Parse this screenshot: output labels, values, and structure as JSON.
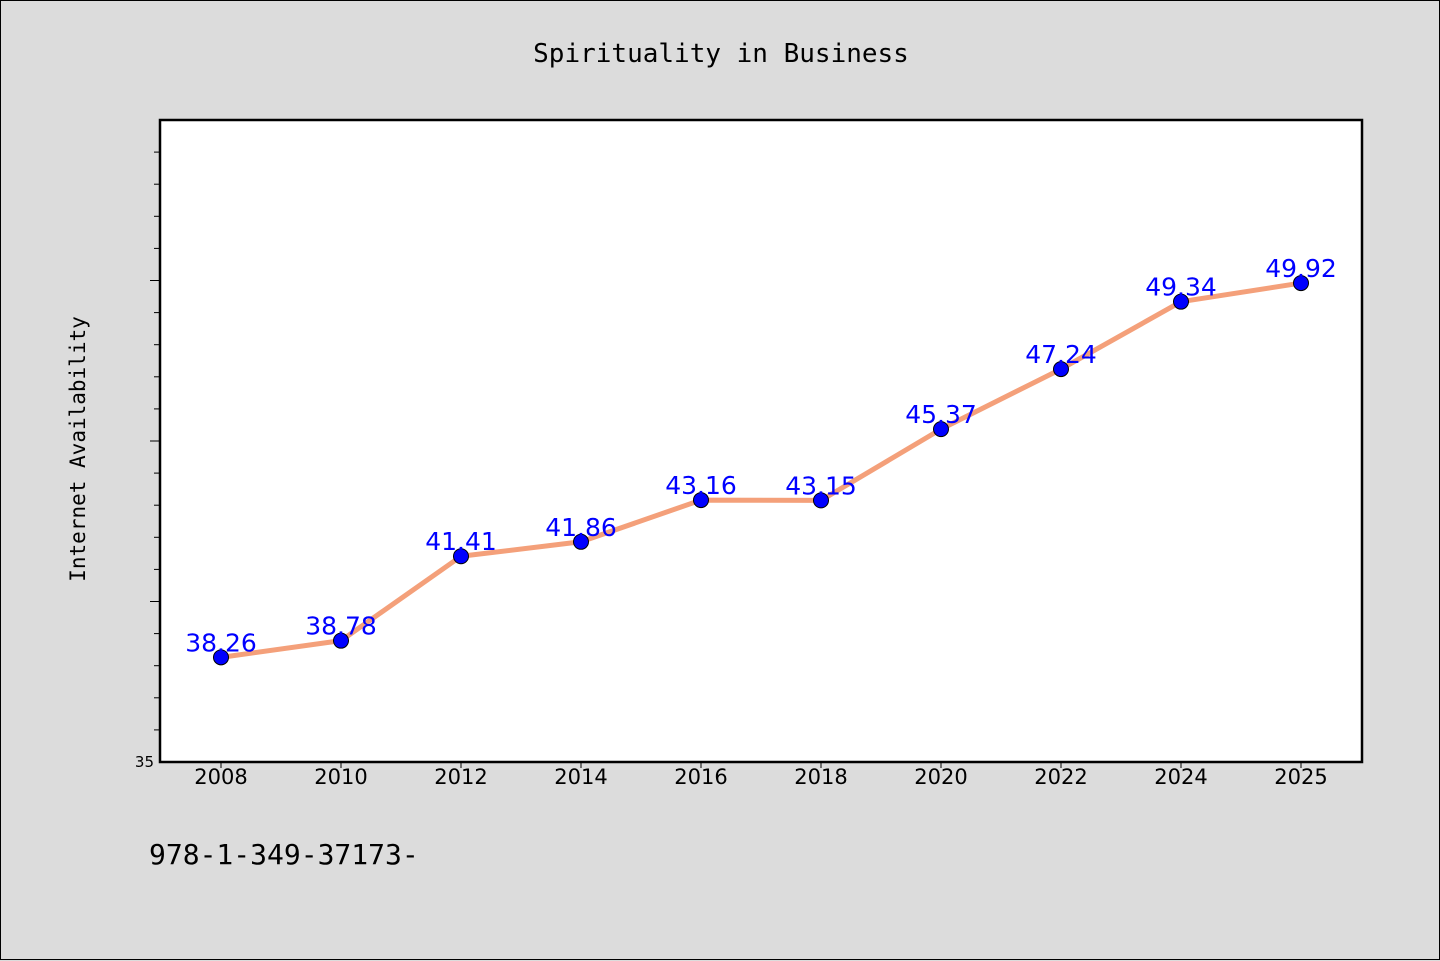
{
  "chart_data": {
    "type": "line",
    "title": "Spirituality in Business",
    "xlabel": "",
    "ylabel": "Internet Availability",
    "categories": [
      "2008",
      "2010",
      "2012",
      "2014",
      "2016",
      "2018",
      "2020",
      "2022",
      "2024",
      "2025"
    ],
    "series": [
      {
        "values": [
          38.26,
          38.78,
          41.41,
          41.86,
          43.16,
          43.15,
          45.37,
          47.24,
          49.34,
          49.92
        ],
        "data_labels": [
          "38.26",
          "38.78",
          "41.41",
          "41.86",
          "43.16",
          "43.15",
          "45.37",
          "47.24",
          "49.34",
          "49.92"
        ],
        "line_color": "#f4a07a",
        "marker_color": "#0000ff"
      }
    ],
    "ylim": [
      35,
      55
    ],
    "ytick_labels": [
      "35"
    ],
    "grid": false,
    "legend": "none"
  },
  "footer": {
    "text": "978-1-349-37173-"
  }
}
